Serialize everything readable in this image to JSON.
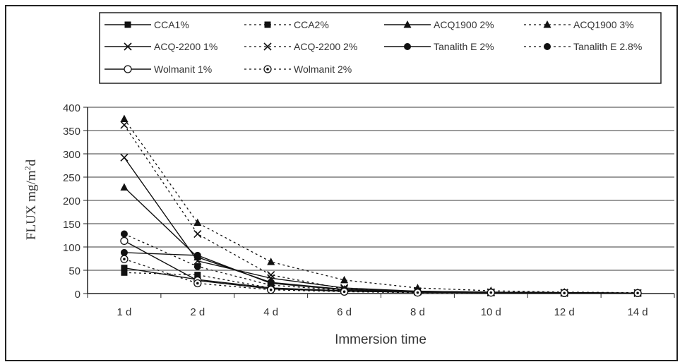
{
  "chart_data": {
    "type": "line",
    "title": "",
    "xlabel": "Immersion time",
    "ylabel_main": "FLUX mg/m",
    "ylabel_sup": "2",
    "ylabel_tail": "d",
    "categories": [
      "1 d",
      "2 d",
      "4 d",
      "6 d",
      "8 d",
      "10 d",
      "12 d",
      "14 d"
    ],
    "ylim": [
      0,
      400
    ],
    "yticks": [
      0,
      50,
      100,
      150,
      200,
      250,
      300,
      350,
      400
    ],
    "grid": "horizontal",
    "legend_position": "top",
    "series": [
      {
        "name": "CCA1%",
        "dash": "solid",
        "marker": "square",
        "values": [
          55,
          30,
          12,
          6,
          3,
          2,
          1,
          1
        ]
      },
      {
        "name": "CCA2%",
        "dash": "dotted",
        "marker": "square",
        "values": [
          45,
          40,
          12,
          5,
          3,
          2,
          1,
          1
        ]
      },
      {
        "name": "ACQ1900 2%",
        "dash": "solid",
        "marker": "triangle",
        "values": [
          228,
          78,
          24,
          9,
          5,
          3,
          2,
          1
        ]
      },
      {
        "name": "ACQ1900 3%",
        "dash": "dotted",
        "marker": "triangle",
        "values": [
          375,
          152,
          68,
          29,
          12,
          6,
          3,
          2
        ]
      },
      {
        "name": "ACQ-2200 1%",
        "dash": "solid",
        "marker": "x",
        "values": [
          292,
          70,
          33,
          12,
          5,
          3,
          2,
          1
        ]
      },
      {
        "name": "ACQ-2200 2%",
        "dash": "dotted",
        "marker": "x",
        "values": [
          362,
          128,
          40,
          10,
          4,
          2,
          1,
          1
        ]
      },
      {
        "name": "Tanalith E 2%",
        "dash": "solid",
        "marker": "dot",
        "values": [
          88,
          82,
          22,
          8,
          4,
          3,
          2,
          1
        ]
      },
      {
        "name": "Tanalith E 2.8%",
        "dash": "dotted",
        "marker": "dot",
        "values": [
          128,
          58,
          18,
          7,
          4,
          2,
          1,
          1
        ]
      },
      {
        "name": "Wolmanit 1%",
        "dash": "solid",
        "marker": "circle",
        "values": [
          113,
          28,
          10,
          5,
          3,
          2,
          1,
          1
        ]
      },
      {
        "name": "Wolmanit 2%",
        "dash": "dotted",
        "marker": "circle-dot",
        "values": [
          74,
          22,
          8,
          4,
          2,
          2,
          1,
          1
        ]
      }
    ]
  }
}
